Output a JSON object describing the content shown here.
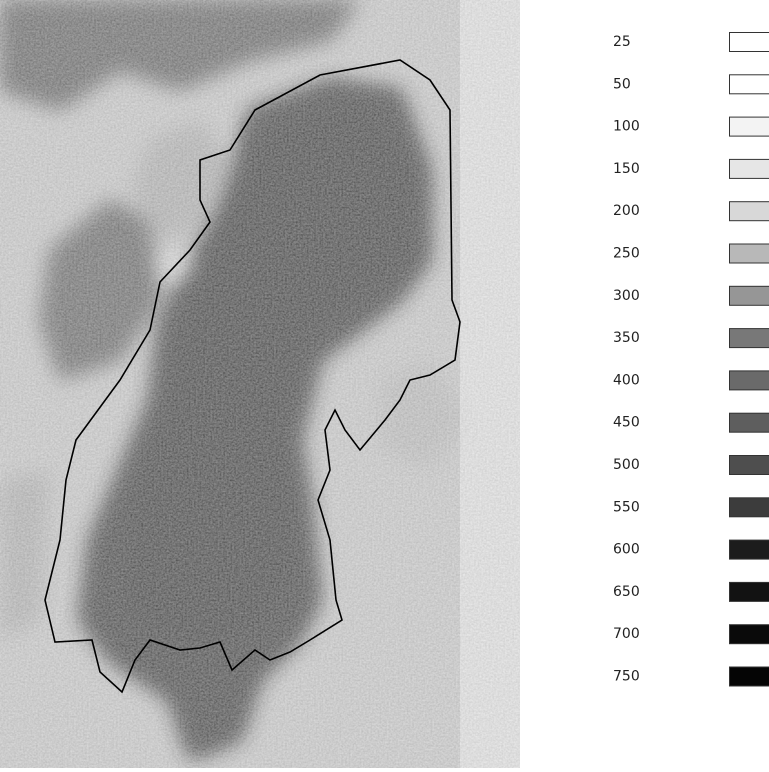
{
  "legend": {
    "items": [
      {
        "label": 25,
        "color": "#ffffff"
      },
      {
        "label": 50,
        "color": "#ffffff"
      },
      {
        "label": 100,
        "color": "#f3f3f3"
      },
      {
        "label": 150,
        "color": "#e6e6e6"
      },
      {
        "label": 200,
        "color": "#d8d8d8"
      },
      {
        "label": 250,
        "color": "#b8b8b8"
      },
      {
        "label": 300,
        "color": "#969696"
      },
      {
        "label": 350,
        "color": "#787878"
      },
      {
        "label": 400,
        "color": "#6a6a6a"
      },
      {
        "label": 450,
        "color": "#5e5e5e"
      },
      {
        "label": 500,
        "color": "#4e4e4e"
      },
      {
        "label": 550,
        "color": "#3c3c3c"
      },
      {
        "label": 600,
        "color": "#1c1c1c"
      },
      {
        "label": 650,
        "color": "#121212"
      },
      {
        "label": 700,
        "color": "#0a0a0a"
      },
      {
        "label": 750,
        "color": "#050505"
      }
    ]
  }
}
